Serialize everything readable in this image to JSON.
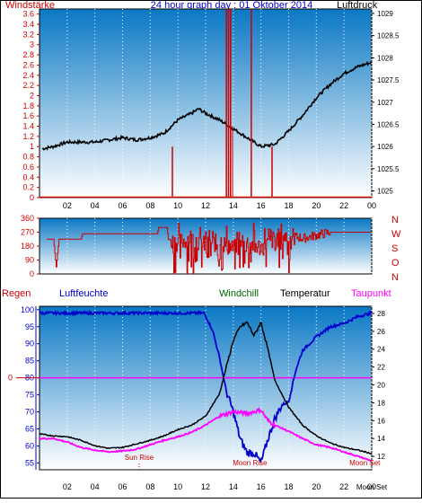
{
  "header": {
    "left": "Windstärke",
    "center": "24 hour graph day : 01 Oktober 2014",
    "right": "Luftdruck"
  },
  "colors": {
    "wind": "#cc0000",
    "pressure": "#000000",
    "humidity": "#0000cc",
    "windchill": "#006600",
    "temperature": "#000000",
    "dewpoint": "#ff00ff",
    "sky_top": "#0a78c4",
    "sky_bottom": "#ffffff"
  },
  "chart_data": [
    {
      "type": "line",
      "name": "wind-and-pressure",
      "x_ticks": [
        "02",
        "04",
        "06",
        "08",
        "10",
        "12",
        "14",
        "16",
        "18",
        "20",
        "22",
        "00"
      ],
      "y_left_ticks": [
        "0",
        "0.2",
        "0.4",
        "0.6",
        "0.8",
        "1",
        "1.2",
        "1.4",
        "1.6",
        "1.8",
        "2",
        "2.2",
        "2.4",
        "2.6",
        "2.8",
        "3",
        "3.2",
        "3.4",
        "3.6"
      ],
      "y_right_ticks": [
        "1025",
        "1025.5",
        "1026",
        "1026.5",
        "1027",
        "1027.5",
        "1028",
        "1028.5",
        "1029"
      ],
      "ylim_left": [
        0,
        3.7
      ],
      "ylim_right": [
        1024.85,
        1029.1
      ],
      "xlim": [
        0,
        24
      ],
      "pressure_label": "Luftdruck",
      "wind_label": "Windstärke",
      "pressure": [
        [
          0.2,
          1025.95
        ],
        [
          1,
          1026.0
        ],
        [
          2,
          1026.1
        ],
        [
          3,
          1026.1
        ],
        [
          4,
          1026.1
        ],
        [
          5,
          1026.15
        ],
        [
          6,
          1026.2
        ],
        [
          7,
          1026.15
        ],
        [
          8,
          1026.2
        ],
        [
          9,
          1026.3
        ],
        [
          10,
          1026.6
        ],
        [
          11,
          1026.75
        ],
        [
          11.5,
          1026.85
        ],
        [
          12,
          1026.75
        ],
        [
          13,
          1026.6
        ],
        [
          14,
          1026.4
        ],
        [
          15,
          1026.2
        ],
        [
          16,
          1026.0
        ],
        [
          17,
          1026.05
        ],
        [
          18,
          1026.35
        ],
        [
          19,
          1026.7
        ],
        [
          20,
          1027.1
        ],
        [
          21,
          1027.4
        ],
        [
          22,
          1027.65
        ],
        [
          23,
          1027.8
        ],
        [
          24,
          1027.9
        ]
      ],
      "wind_gusts": [
        [
          9.6,
          1.0
        ],
        [
          13.5,
          3.7
        ],
        [
          13.8,
          3.7
        ],
        [
          15.3,
          3.7
        ],
        [
          16.8,
          1.0
        ]
      ]
    },
    {
      "type": "line",
      "name": "wind-direction",
      "x_ticks": [
        "02",
        "04",
        "06",
        "08",
        "10",
        "12",
        "14",
        "16",
        "18",
        "20",
        "22",
        "00"
      ],
      "y_ticks": [
        "0",
        "90",
        "180",
        "270",
        "360"
      ],
      "ylim": [
        0,
        360
      ],
      "compass": [
        "N",
        "W",
        "S",
        "O",
        "N"
      ],
      "direction": [
        [
          0.5,
          225
        ],
        [
          1.0,
          225
        ],
        [
          1.2,
          45
        ],
        [
          1.4,
          225
        ],
        [
          3.0,
          225
        ],
        [
          3.1,
          260
        ],
        [
          8.5,
          260
        ],
        [
          8.6,
          300
        ],
        [
          9.2,
          300
        ],
        [
          9.3,
          225
        ],
        [
          10,
          200
        ],
        [
          11,
          240
        ],
        [
          12,
          180
        ],
        [
          13,
          210
        ],
        [
          14,
          160
        ],
        [
          15,
          200
        ],
        [
          16,
          170
        ],
        [
          17,
          230
        ],
        [
          18,
          250
        ],
        [
          19,
          230
        ],
        [
          20,
          250
        ],
        [
          21,
          270
        ],
        [
          22,
          270
        ],
        [
          23,
          270
        ],
        [
          24,
          270
        ]
      ]
    },
    {
      "type": "line",
      "name": "humidity-temperature",
      "headers": [
        "Regen",
        "Luftfeuchte",
        "Windchill",
        "Temperatur",
        "Taupunkt"
      ],
      "x_ticks": [
        "02",
        "04",
        "06",
        "08",
        "10",
        "12",
        "14",
        "16",
        "18",
        "20",
        "22",
        "00"
      ],
      "y_left_ticks": [
        "55",
        "60",
        "65",
        "70",
        "75",
        "80",
        "85",
        "90",
        "95",
        "100"
      ],
      "y_right_ticks": [
        "12",
        "14",
        "16",
        "18",
        "20",
        "22",
        "24",
        "26",
        "28"
      ],
      "rain_axis_label": "0",
      "ylim_left": [
        53,
        101
      ],
      "ylim_right": [
        10.5,
        28.8
      ],
      "annotations": [
        {
          "text": "Sun Rise",
          "x": 7.2
        },
        {
          "text": "Moon Rise",
          "x": 15.2
        },
        {
          "text": "Moon Set",
          "x": 23.5
        }
      ],
      "corner_labels": [
        "Moon Set"
      ],
      "humidity": [
        [
          0,
          99
        ],
        [
          11.9,
          99
        ],
        [
          12.5,
          94
        ],
        [
          13,
          86
        ],
        [
          13.5,
          76
        ],
        [
          14,
          70
        ],
        [
          14.5,
          62
        ],
        [
          15,
          58
        ],
        [
          15.5,
          58
        ],
        [
          16,
          55
        ],
        [
          16.5,
          62
        ],
        [
          17,
          68
        ],
        [
          17.5,
          72
        ],
        [
          18,
          73
        ],
        [
          18.5,
          82
        ],
        [
          19,
          88
        ],
        [
          20,
          92
        ],
        [
          21,
          95
        ],
        [
          22,
          96
        ],
        [
          23,
          98
        ],
        [
          24,
          99
        ]
      ],
      "temperature": [
        [
          0,
          14.5
        ],
        [
          1,
          14.3
        ],
        [
          2,
          14.2
        ],
        [
          3,
          13.8
        ],
        [
          4,
          13.2
        ],
        [
          5,
          12.9
        ],
        [
          6,
          13.0
        ],
        [
          7,
          13.4
        ],
        [
          8,
          13.8
        ],
        [
          9,
          14.3
        ],
        [
          10,
          15.0
        ],
        [
          11,
          15.5
        ],
        [
          12,
          16.5
        ],
        [
          13,
          19.0
        ],
        [
          13.5,
          22.0
        ],
        [
          14,
          25.0
        ],
        [
          14.5,
          26.5
        ],
        [
          15,
          27.0
        ],
        [
          15.5,
          25.5
        ],
        [
          16,
          27.0
        ],
        [
          16.5,
          24.0
        ],
        [
          17,
          20.5
        ],
        [
          17.5,
          19.0
        ],
        [
          18,
          17.5
        ],
        [
          19,
          15.5
        ],
        [
          20,
          14.3
        ],
        [
          21,
          13.5
        ],
        [
          22,
          13.0
        ],
        [
          23,
          12.7
        ],
        [
          24,
          12.3
        ]
      ],
      "dewpoint": [
        [
          0,
          14.0
        ],
        [
          1,
          14.0
        ],
        [
          2,
          13.6
        ],
        [
          3,
          13.0
        ],
        [
          4,
          12.7
        ],
        [
          5,
          12.5
        ],
        [
          6,
          12.6
        ],
        [
          7,
          12.8
        ],
        [
          8,
          13.3
        ],
        [
          9,
          13.8
        ],
        [
          10,
          14.2
        ],
        [
          11,
          14.7
        ],
        [
          12,
          15.5
        ],
        [
          13,
          16.5
        ],
        [
          14,
          17.0
        ],
        [
          15,
          16.8
        ],
        [
          16,
          17.2
        ],
        [
          16.5,
          16.0
        ],
        [
          17,
          15.5
        ],
        [
          18,
          14.8
        ],
        [
          19,
          14.0
        ],
        [
          20,
          13.3
        ],
        [
          21,
          13.0
        ],
        [
          22,
          12.5
        ],
        [
          23,
          12.0
        ],
        [
          24,
          11.5
        ]
      ],
      "rain": [
        [
          0,
          80
        ],
        [
          24,
          80
        ]
      ]
    }
  ]
}
